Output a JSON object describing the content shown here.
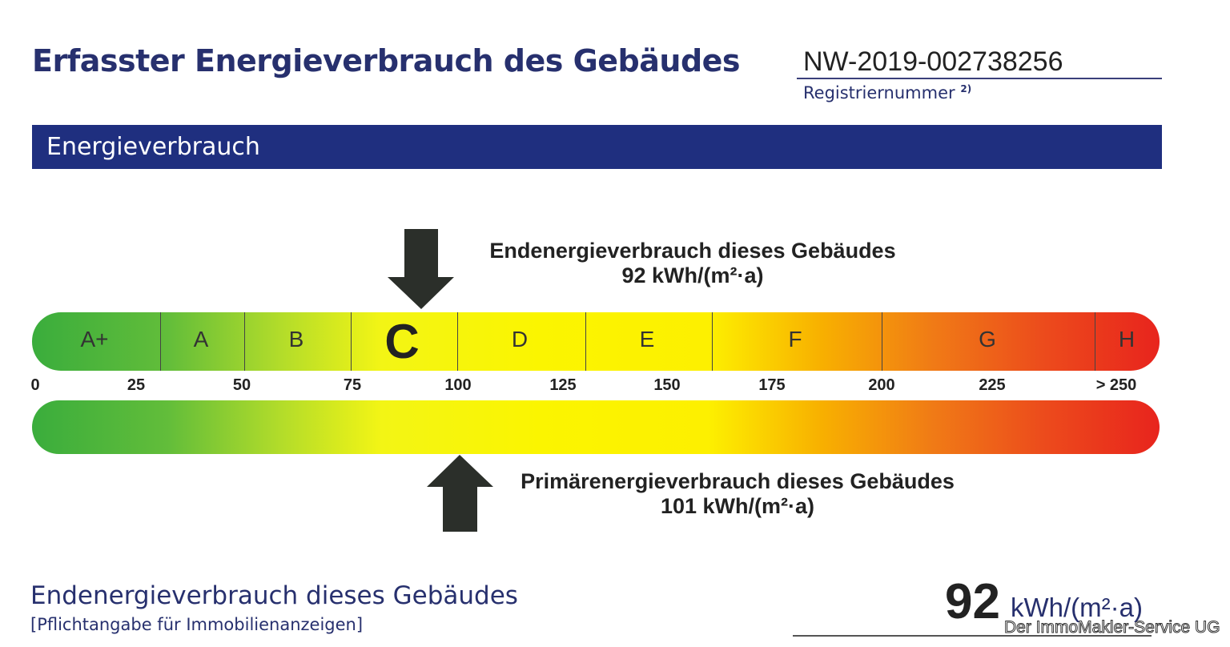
{
  "header": {
    "title": "Erfasster Energieverbrauch des Gebäudes",
    "registration_number": "NW-2019-002738256",
    "registration_label": "Registriernummer",
    "registration_footnote": "2)"
  },
  "section_band": "Energieverbrauch",
  "end_energy": {
    "label": "Endenergieverbrauch dieses Gebäudes",
    "value": "92 kWh/(m²·a)",
    "numeric": 92
  },
  "primary_energy": {
    "label": "Primärenergieverbrauch dieses Gebäudes",
    "value": "101 kWh/(m²·a)",
    "numeric": 101
  },
  "classes": [
    "A+",
    "A",
    "B",
    "C",
    "D",
    "E",
    "F",
    "G",
    "H"
  ],
  "highlighted_class": "C",
  "scale_ticks": [
    "0",
    "25",
    "50",
    "75",
    "100",
    "125",
    "150",
    "175",
    "200",
    "225",
    "> 250"
  ],
  "colors": {
    "navy": "#1f2f7f",
    "green": "#3aad3c",
    "yellow": "#fbf500",
    "red": "#e8241d",
    "arrow": "#2b2f2a"
  },
  "footer": {
    "title": "Endenergieverbrauch dieses Gebäudes",
    "subtitle": "[Pflichtangabe für Immobilienanzeigen]",
    "value": "92",
    "unit": "kWh/(m²·a)",
    "watermark": "Der ImmoMakler-Service UG"
  }
}
